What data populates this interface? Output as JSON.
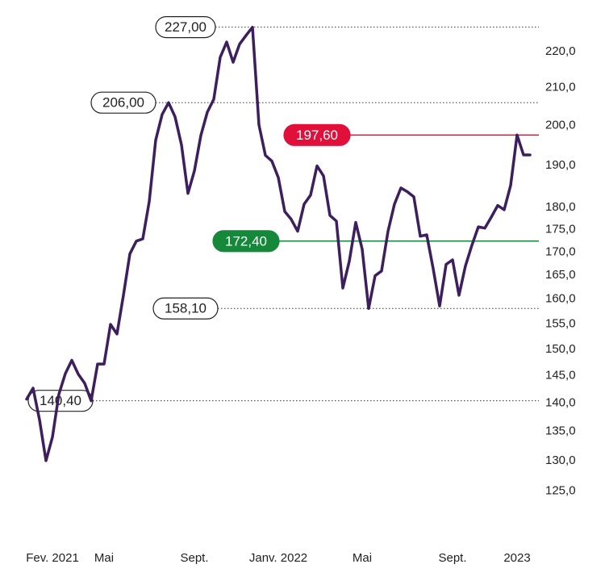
{
  "chart_data": {
    "type": "line",
    "log_scale": true,
    "ylim": [
      121,
      230
    ],
    "yticks": [
      {
        "value": 125,
        "label": "125,0"
      },
      {
        "value": 130,
        "label": "130,0"
      },
      {
        "value": 135,
        "label": "135,0"
      },
      {
        "value": 140,
        "label": "140,0"
      },
      {
        "value": 145,
        "label": "145,0"
      },
      {
        "value": 150,
        "label": "150,0"
      },
      {
        "value": 155,
        "label": "155,0"
      },
      {
        "value": 160,
        "label": "160,0"
      },
      {
        "value": 165,
        "label": "165,0"
      },
      {
        "value": 170,
        "label": "170,0"
      },
      {
        "value": 175,
        "label": "175,0"
      },
      {
        "value": 180,
        "label": "180,0"
      },
      {
        "value": 190,
        "label": "190,0"
      },
      {
        "value": 200,
        "label": "200,0"
      },
      {
        "value": 210,
        "label": "210,0"
      },
      {
        "value": 220,
        "label": "220,0"
      }
    ],
    "categories": [
      null,
      null,
      null,
      null,
      "Fev. 2021",
      null,
      null,
      null,
      null,
      null,
      null,
      null,
      "Mai",
      null,
      null,
      null,
      null,
      null,
      null,
      null,
      null,
      null,
      null,
      null,
      null,
      null,
      "Sept.",
      null,
      null,
      null,
      null,
      null,
      null,
      null,
      null,
      null,
      null,
      null,
      null,
      "Janv. 2022",
      null,
      null,
      null,
      null,
      null,
      null,
      null,
      null,
      null,
      null,
      null,
      null,
      "Mai",
      null,
      null,
      null,
      null,
      null,
      null,
      null,
      null,
      null,
      null,
      null,
      null,
      null,
      "Sept.",
      null,
      null,
      null,
      null,
      null,
      null,
      null,
      null,
      null,
      "2023",
      null,
      null
    ],
    "series": [
      {
        "color": "#3d1f5e",
        "values": [
          140.7,
          142.7,
          137.0,
          130.0,
          134.0,
          141.6,
          145.4,
          147.9,
          145.3,
          143.6,
          140.4,
          147.2,
          147.2,
          154.9,
          153.0,
          160.8,
          169.6,
          172.4,
          172.9,
          181.4,
          196.3,
          202.9,
          206.0,
          202.3,
          195.1,
          183.3,
          188.7,
          197.5,
          203.5,
          206.9,
          218.4,
          222.7,
          217.0,
          222.1,
          224.6,
          227.0,
          200.2,
          192.5,
          191.1,
          187.1,
          179.1,
          177.3,
          174.6,
          180.8,
          182.9,
          189.9,
          187.5,
          178.2,
          176.9,
          162.3,
          168.0,
          176.6,
          170.6,
          158.1,
          164.9,
          165.9,
          174.6,
          180.8,
          184.6,
          183.7,
          182.5,
          173.5,
          173.8,
          166.4,
          158.6,
          167.3,
          168.3,
          160.8,
          167.0,
          171.5,
          175.6,
          175.3,
          177.8,
          180.5,
          179.5,
          185.2,
          197.6,
          192.6,
          192.6
        ]
      }
    ],
    "reference_lines": [
      {
        "value": 227,
        "label": "227,00",
        "style": "dotted",
        "color": "#333333"
      },
      {
        "value": 206,
        "label": "206,00",
        "style": "dotted",
        "color": "#333333"
      },
      {
        "value": 197.6,
        "label": "197,60",
        "style": "solid",
        "color": "#e0103a"
      },
      {
        "value": 172.4,
        "label": "172,40",
        "style": "solid",
        "color": "#15883a"
      },
      {
        "value": 158.1,
        "label": "158,10",
        "style": "dotted",
        "color": "#333333"
      },
      {
        "value": 140.4,
        "label": "140,40",
        "style": "dotted",
        "color": "#333333"
      }
    ]
  }
}
